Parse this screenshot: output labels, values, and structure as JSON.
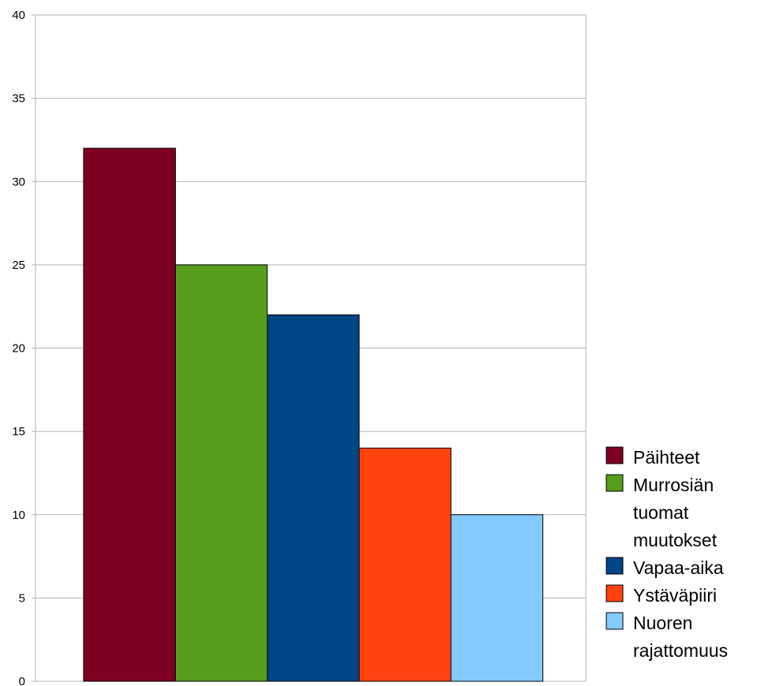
{
  "chart_data": {
    "type": "bar",
    "title": "",
    "xlabel": "",
    "ylabel": "",
    "ylim": [
      0,
      40
    ],
    "yticks": [
      0,
      5,
      10,
      15,
      20,
      25,
      30,
      35,
      40
    ],
    "grid": true,
    "legend_position": "right",
    "series": [
      {
        "name": "Päihteet",
        "value": 32,
        "color": "#7e0021"
      },
      {
        "name": "Murrosiän tuomat muutokset",
        "value": 25,
        "color": "#579d1c"
      },
      {
        "name": "Vapaa-aika",
        "value": 22,
        "color": "#004586"
      },
      {
        "name": "Ystäväpiiri",
        "value": 14,
        "color": "#ff420e"
      },
      {
        "name": "Nuoren rajattomuus",
        "value": 10,
        "color": "#83caff"
      }
    ]
  }
}
